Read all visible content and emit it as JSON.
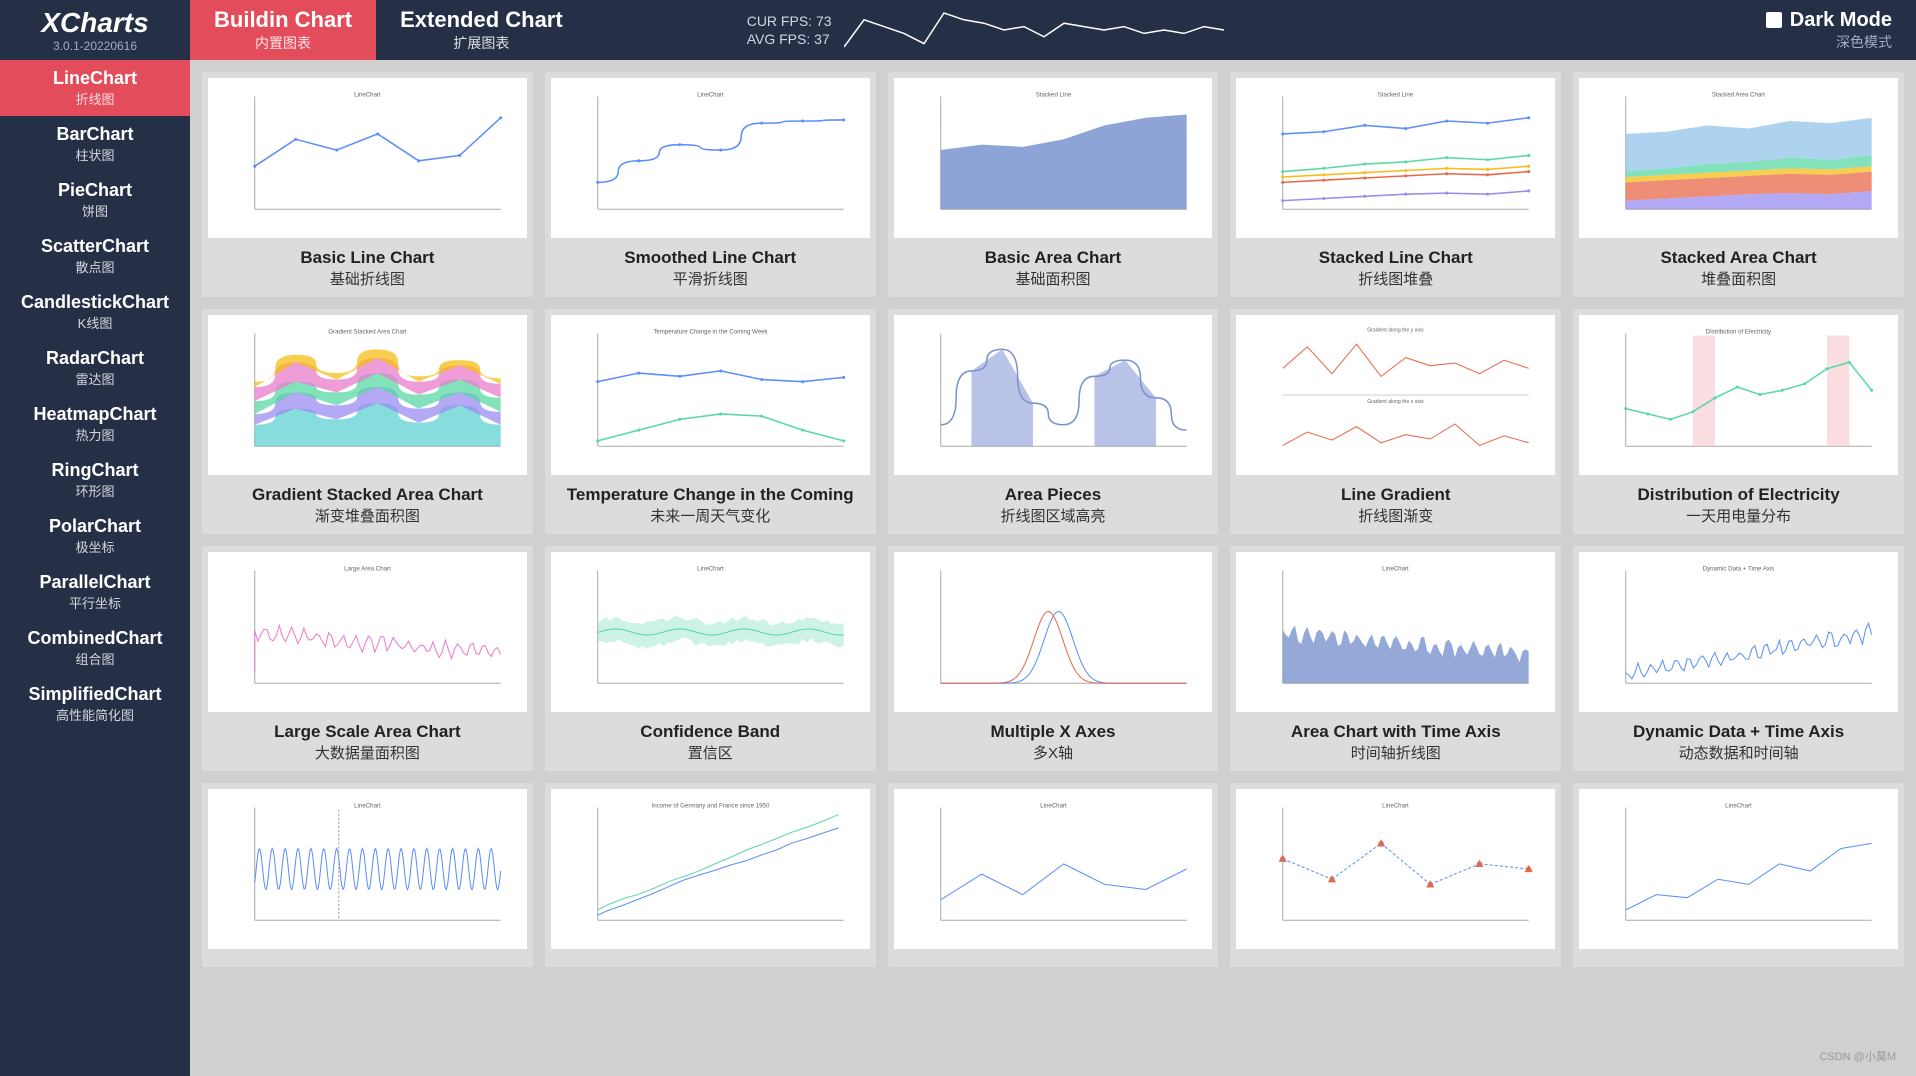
{
  "header": {
    "logo_title": "XCharts",
    "logo_sub": "3.0.1-20220616",
    "tabs": [
      {
        "en": "Buildin Chart",
        "cn": "内置图表",
        "active": true
      },
      {
        "en": "Extended Chart",
        "cn": "扩展图表",
        "active": false
      }
    ],
    "fps_cur_label": "CUR FPS:",
    "fps_cur_val": "73",
    "fps_avg_label": "AVG FPS:",
    "fps_avg_val": "37",
    "sparkline": {
      "points": [
        2,
        10,
        8,
        6,
        3,
        12,
        10,
        9,
        7,
        8,
        5,
        9,
        8,
        7,
        8,
        6,
        7,
        6,
        8,
        7
      ],
      "stroke": "#ffffff"
    },
    "darkmode_en": "Dark Mode",
    "darkmode_cn": "深色模式"
  },
  "sidebar": [
    {
      "en": "LineChart",
      "cn": "折线图",
      "active": true
    },
    {
      "en": "BarChart",
      "cn": "柱状图"
    },
    {
      "en": "PieChart",
      "cn": "饼图"
    },
    {
      "en": "ScatterChart",
      "cn": "散点图"
    },
    {
      "en": "CandlestickChart",
      "cn": "K线图"
    },
    {
      "en": "RadarChart",
      "cn": "雷达图"
    },
    {
      "en": "HeatmapChart",
      "cn": "热力图"
    },
    {
      "en": "RingChart",
      "cn": "环形图"
    },
    {
      "en": "PolarChart",
      "cn": "极坐标"
    },
    {
      "en": "ParallelChart",
      "cn": "平行坐标"
    },
    {
      "en": "CombinedChart",
      "cn": "组合图"
    },
    {
      "en": "SimplifiedChart",
      "cn": "高性能简化图"
    }
  ],
  "colors": {
    "topbar": "#253047",
    "accent": "#e34c5b",
    "blue": "#5b8ff9",
    "green": "#5ad8a6",
    "yellow": "#f6bd16",
    "red": "#e8684a",
    "purple": "#9b8cf0",
    "teal": "#5fd1d1",
    "pink": "#ea7ccc",
    "area_blue": "#7b94cf",
    "light": "#cce1f3",
    "grid": "#e0e0e0",
    "pink_band": "#f5c6cb"
  },
  "cards": [
    {
      "en": "Basic Line Chart",
      "cn": "基础折线图",
      "chart": {
        "type": "line",
        "title": "LineChart",
        "series": [
          {
            "color": "#5b8ff9",
            "data": [
              40,
              65,
              55,
              70,
              45,
              50,
              85
            ]
          }
        ]
      }
    },
    {
      "en": "Smoothed Line Chart",
      "cn": "平滑折线图",
      "chart": {
        "type": "smooth",
        "title": "LineChart",
        "series": [
          {
            "color": "#5b8ff9",
            "data": [
              25,
              45,
              60,
              55,
              80,
              82,
              83
            ]
          }
        ]
      }
    },
    {
      "en": "Basic Area Chart",
      "cn": "基础面积图",
      "chart": {
        "type": "area",
        "title": "Stacked Line",
        "series": [
          {
            "color": "#7b94cf",
            "fill": "#7b94cf",
            "data": [
              55,
              60,
              58,
              65,
              78,
              85,
              88
            ]
          }
        ]
      }
    },
    {
      "en": "Stacked Line Chart",
      "cn": "折线图堆叠",
      "chart": {
        "type": "line",
        "title": "Stacked Line",
        "series": [
          {
            "color": "#5b8ff9",
            "data": [
              70,
              72,
              78,
              75,
              82,
              80,
              85
            ]
          },
          {
            "color": "#5ad8a6",
            "data": [
              35,
              38,
              42,
              44,
              48,
              46,
              50
            ]
          },
          {
            "color": "#f6bd16",
            "data": [
              30,
              32,
              34,
              36,
              38,
              37,
              40
            ]
          },
          {
            "color": "#e8684a",
            "data": [
              25,
              27,
              29,
              31,
              33,
              32,
              35
            ]
          },
          {
            "color": "#9b8cf0",
            "data": [
              8,
              10,
              12,
              14,
              15,
              14,
              17
            ]
          }
        ]
      }
    },
    {
      "en": "Stacked Area Chart",
      "cn": "堆叠面积图",
      "chart": {
        "type": "stacked-area",
        "title": "Stacked Area Chart",
        "series": [
          {
            "color": "#9b8cf0",
            "data": [
              8,
              10,
              12,
              14,
              15,
              14,
              17
            ]
          },
          {
            "color": "#e8684a",
            "data": [
              25,
              27,
              29,
              31,
              33,
              32,
              35
            ]
          },
          {
            "color": "#f6bd16",
            "data": [
              30,
              32,
              34,
              36,
              38,
              37,
              40
            ]
          },
          {
            "color": "#5ad8a6",
            "data": [
              35,
              38,
              42,
              44,
              48,
              46,
              50
            ]
          },
          {
            "color": "#93c4ea",
            "data": [
              70,
              72,
              78,
              75,
              82,
              80,
              85
            ]
          }
        ]
      }
    },
    {
      "en": "Gradient Stacked Area Chart",
      "cn": "渐变堆叠面积图",
      "chart": {
        "type": "smooth-stacked-area",
        "title": "Gradient Stacked Area Chart",
        "series": [
          {
            "color": "#5fd1d1",
            "data": [
              20,
              35,
              25,
              40,
              22,
              38,
              20
            ]
          },
          {
            "color": "#9b8cf0",
            "data": [
              30,
              50,
              38,
              55,
              35,
              50,
              32
            ]
          },
          {
            "color": "#5ad8a6",
            "data": [
              42,
              60,
              50,
              68,
              48,
              62,
              45
            ]
          },
          {
            "color": "#ea7ccc",
            "data": [
              55,
              78,
              62,
              82,
              60,
              75,
              58
            ]
          },
          {
            "color": "#f6bd16",
            "data": [
              60,
              85,
              68,
              90,
              65,
              80,
              63
            ]
          }
        ]
      }
    },
    {
      "en": "Temperature Change in the Coming",
      "cn": "未来一周天气变化",
      "chart": {
        "type": "line",
        "title": "Temperature Change in the Coming Week",
        "series": [
          {
            "color": "#5b8ff9",
            "data": [
              60,
              68,
              65,
              70,
              62,
              60,
              64
            ]
          },
          {
            "color": "#5ad8a6",
            "data": [
              5,
              15,
              25,
              30,
              28,
              15,
              5
            ]
          }
        ]
      }
    },
    {
      "en": "Area Pieces",
      "cn": "折线图区域高亮",
      "chart": {
        "type": "area-pieces",
        "series": [
          {
            "color": "#7b94cf",
            "fill": "#9ba9de",
            "data": [
              20,
              70,
              90,
              40,
              20,
              65,
              80,
              45,
              15
            ]
          }
        ],
        "highlight": [
          [
            1,
            3
          ],
          [
            5,
            7
          ]
        ]
      }
    },
    {
      "en": "Line Gradient",
      "cn": "折线图渐变",
      "chart": {
        "type": "dual",
        "titles": [
          "Gradient along the y axis",
          "Gradient along the x axis"
        ],
        "series": [
          {
            "color": "#e8684a",
            "data": [
              40,
              80,
              30,
              85,
              25,
              60,
              45,
              50,
              30,
              55,
              40
            ]
          },
          {
            "color": "#e8684a",
            "data": [
              30,
              55,
              40,
              65,
              35,
              50,
              42,
              70,
              30,
              48,
              35
            ]
          }
        ]
      }
    },
    {
      "en": "Distribution of Electricity",
      "cn": "一天用电量分布",
      "chart": {
        "type": "line-band",
        "title": "Distribution of Electricity",
        "series": [
          {
            "color": "#5ad8a6",
            "data": [
              35,
              30,
              25,
              32,
              45,
              55,
              48,
              52,
              58,
              72,
              78,
              52
            ]
          }
        ],
        "bands": [
          [
            3,
            4
          ],
          [
            9,
            10
          ]
        ],
        "band_color": "#f5c6cb"
      }
    },
    {
      "en": "Large Scale Area Chart",
      "cn": "大数据量面积图",
      "chart": {
        "type": "noisy-line",
        "title": "Large Area Chart",
        "color": "#ea7ccc"
      }
    },
    {
      "en": "Confidence Band",
      "cn": "置信区",
      "chart": {
        "type": "confidence",
        "title": "LineChart",
        "color": "#5ad8a6"
      }
    },
    {
      "en": "Multiple X Axes",
      "cn": "多X轴",
      "chart": {
        "type": "bell",
        "series": [
          {
            "color": "#5b8ff9"
          },
          {
            "color": "#e8684a"
          }
        ]
      }
    },
    {
      "en": "Area Chart with Time Axis",
      "cn": "时间轴折线图",
      "chart": {
        "type": "noisy-area",
        "title": "LineChart",
        "color": "#7b94cf"
      }
    },
    {
      "en": "Dynamic Data + Time Axis",
      "cn": "动态数据和时间轴",
      "chart": {
        "type": "noisy-line",
        "title": "Dynamic Data + Time Axis",
        "color": "#5b8ff9",
        "rising": true
      }
    },
    {
      "en": "",
      "cn": "",
      "chart": {
        "type": "sine",
        "title": "LineChart",
        "color": "#5b8ff9"
      }
    },
    {
      "en": "",
      "cn": "",
      "chart": {
        "type": "step",
        "title": "Income of Germany and France since 1950",
        "colors": [
          "#5b8ff9",
          "#5ad8a6"
        ]
      }
    },
    {
      "en": "",
      "cn": "",
      "chart": {
        "type": "simple-line",
        "title": "LineChart",
        "color": "#5b8ff9"
      }
    },
    {
      "en": "",
      "cn": "",
      "chart": {
        "type": "dash-marker",
        "title": "LineChart",
        "colors": [
          "#e8684a",
          "#5b8ff9"
        ]
      }
    },
    {
      "en": "",
      "cn": "",
      "chart": {
        "type": "rising",
        "title": "LineChart",
        "color": "#5b8ff9"
      }
    }
  ],
  "watermark": "CSDN @小莫M"
}
